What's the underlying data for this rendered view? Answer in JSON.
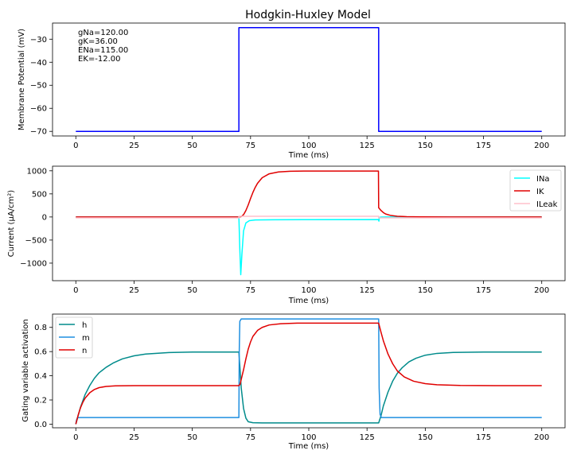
{
  "chart_data": [
    {
      "type": "line",
      "title": "Hodgkin-Huxley Model",
      "xlabel": "Time (ms)",
      "ylabel": "Membrane Potential (mV)",
      "xlim": [
        -10,
        210
      ],
      "ylim": [
        -72,
        -23
      ],
      "xticks": [
        0,
        25,
        50,
        75,
        100,
        125,
        150,
        175,
        200
      ],
      "yticks": [
        -70,
        -60,
        -50,
        -40,
        -30
      ],
      "annotation": [
        "gNa=120.00",
        "gK=36.00",
        "ENa=115.00",
        "EK=-12.00"
      ],
      "grid": false,
      "series": [
        {
          "color": "#0000ff",
          "points": [
            [
              0,
              -70
            ],
            [
              70,
              -70
            ],
            [
              70,
              -25
            ],
            [
              130,
              -25
            ],
            [
              130,
              -70
            ],
            [
              200,
              -70
            ]
          ]
        }
      ]
    },
    {
      "type": "line",
      "xlabel": "Time (ms)",
      "ylabel": "Current (µA/cm²)",
      "xlim": [
        -10,
        210
      ],
      "ylim": [
        -1380,
        1100
      ],
      "xticks": [
        0,
        25,
        50,
        75,
        100,
        125,
        150,
        175,
        200
      ],
      "yticks": [
        -1000,
        -500,
        0,
        500,
        1000
      ],
      "legend": "top-right",
      "grid": false,
      "series": [
        {
          "name": "INa",
          "color": "#00ffff",
          "points": [
            [
              0,
              0
            ],
            [
              69.9,
              0
            ],
            [
              70,
              -3
            ],
            [
              70.4,
              -700
            ],
            [
              70.8,
              -1250
            ],
            [
              71.3,
              -800
            ],
            [
              72,
              -300
            ],
            [
              73,
              -130
            ],
            [
              74.5,
              -80
            ],
            [
              77,
              -65
            ],
            [
              85,
              -60
            ],
            [
              100,
              -58
            ],
            [
              129.9,
              -57
            ],
            [
              130.1,
              -90
            ],
            [
              130.3,
              -10
            ],
            [
              131,
              -2
            ],
            [
              133,
              0
            ],
            [
              200,
              0
            ]
          ]
        },
        {
          "name": "IK",
          "color": "#e00000",
          "points": [
            [
              0,
              0
            ],
            [
              70,
              0
            ],
            [
              71,
              8
            ],
            [
              72,
              50
            ],
            [
              73,
              140
            ],
            [
              74,
              260
            ],
            [
              75,
              400
            ],
            [
              76,
              530
            ],
            [
              77,
              640
            ],
            [
              78,
              730
            ],
            [
              80,
              850
            ],
            [
              83,
              935
            ],
            [
              87,
              975
            ],
            [
              92,
              990
            ],
            [
              100,
              995
            ],
            [
              129.9,
              995
            ],
            [
              130,
              200
            ],
            [
              131,
              140
            ],
            [
              132,
              95
            ],
            [
              133,
              65
            ],
            [
              135,
              35
            ],
            [
              138,
              15
            ],
            [
              142,
              6
            ],
            [
              148,
              2
            ],
            [
              160,
              0
            ],
            [
              200,
              0
            ]
          ]
        },
        {
          "name": "ILeak",
          "color": "#ffc0cb",
          "points": [
            [
              0,
              -20
            ],
            [
              70,
              -20
            ],
            [
              70,
              15
            ],
            [
              130,
              15
            ],
            [
              130,
              -20
            ],
            [
              200,
              -20
            ]
          ]
        }
      ]
    },
    {
      "type": "line",
      "xlabel": "Time (ms)",
      "ylabel": "Gating variable activation",
      "xlim": [
        -10,
        210
      ],
      "ylim": [
        -0.03,
        0.91
      ],
      "xticks": [
        0,
        25,
        50,
        75,
        100,
        125,
        150,
        175,
        200
      ],
      "yticks": [
        0.0,
        0.2,
        0.4,
        0.6,
        0.8
      ],
      "legend": "top-left",
      "grid": false,
      "series": [
        {
          "name": "h",
          "color": "#008b8b",
          "points": [
            [
              0,
              0.0
            ],
            [
              2,
              0.14
            ],
            [
              4,
              0.245
            ],
            [
              6,
              0.32
            ],
            [
              8,
              0.38
            ],
            [
              10,
              0.425
            ],
            [
              13,
              0.47
            ],
            [
              16,
              0.505
            ],
            [
              20,
              0.54
            ],
            [
              25,
              0.565
            ],
            [
              30,
              0.58
            ],
            [
              40,
              0.592
            ],
            [
              50,
              0.596
            ],
            [
              70,
              0.596
            ],
            [
              70.5,
              0.45
            ],
            [
              71,
              0.3
            ],
            [
              72,
              0.13
            ],
            [
              73,
              0.05
            ],
            [
              74,
              0.02
            ],
            [
              76,
              0.012
            ],
            [
              80,
              0.01
            ],
            [
              130,
              0.01
            ],
            [
              131,
              0.07
            ],
            [
              132,
              0.15
            ],
            [
              134,
              0.265
            ],
            [
              136,
              0.355
            ],
            [
              138,
              0.42
            ],
            [
              140,
              0.465
            ],
            [
              143,
              0.515
            ],
            [
              146,
              0.545
            ],
            [
              150,
              0.57
            ],
            [
              155,
              0.585
            ],
            [
              162,
              0.593
            ],
            [
              175,
              0.596
            ],
            [
              200,
              0.596
            ]
          ]
        },
        {
          "name": "m",
          "color": "#1f8fe0",
          "points": [
            [
              0,
              0.0
            ],
            [
              0.3,
              0.035
            ],
            [
              0.7,
              0.053
            ],
            [
              2,
              0.055
            ],
            [
              70,
              0.055
            ],
            [
              70.15,
              0.6
            ],
            [
              70.4,
              0.85
            ],
            [
              71,
              0.87
            ],
            [
              130,
              0.87
            ],
            [
              130.2,
              0.3
            ],
            [
              130.6,
              0.08
            ],
            [
              131.2,
              0.055
            ],
            [
              200,
              0.055
            ]
          ]
        },
        {
          "name": "n",
          "color": "#e00000",
          "points": [
            [
              0,
              0.0
            ],
            [
              1,
              0.075
            ],
            [
              2,
              0.135
            ],
            [
              3,
              0.18
            ],
            [
              4,
              0.215
            ],
            [
              6,
              0.26
            ],
            [
              8,
              0.287
            ],
            [
              10,
              0.302
            ],
            [
              13,
              0.312
            ],
            [
              17,
              0.317
            ],
            [
              25,
              0.318
            ],
            [
              70,
              0.318
            ],
            [
              70.5,
              0.33
            ],
            [
              71,
              0.37
            ],
            [
              72,
              0.45
            ],
            [
              73,
              0.54
            ],
            [
              74,
              0.62
            ],
            [
              75,
              0.68
            ],
            [
              76,
              0.725
            ],
            [
              78,
              0.775
            ],
            [
              80,
              0.8
            ],
            [
              83,
              0.82
            ],
            [
              88,
              0.83
            ],
            [
              95,
              0.835
            ],
            [
              130,
              0.835
            ],
            [
              131,
              0.76
            ],
            [
              132,
              0.69
            ],
            [
              134,
              0.58
            ],
            [
              136,
              0.5
            ],
            [
              138,
              0.44
            ],
            [
              141,
              0.39
            ],
            [
              145,
              0.355
            ],
            [
              150,
              0.335
            ],
            [
              155,
              0.326
            ],
            [
              165,
              0.32
            ],
            [
              180,
              0.318
            ],
            [
              200,
              0.318
            ]
          ]
        }
      ]
    }
  ]
}
